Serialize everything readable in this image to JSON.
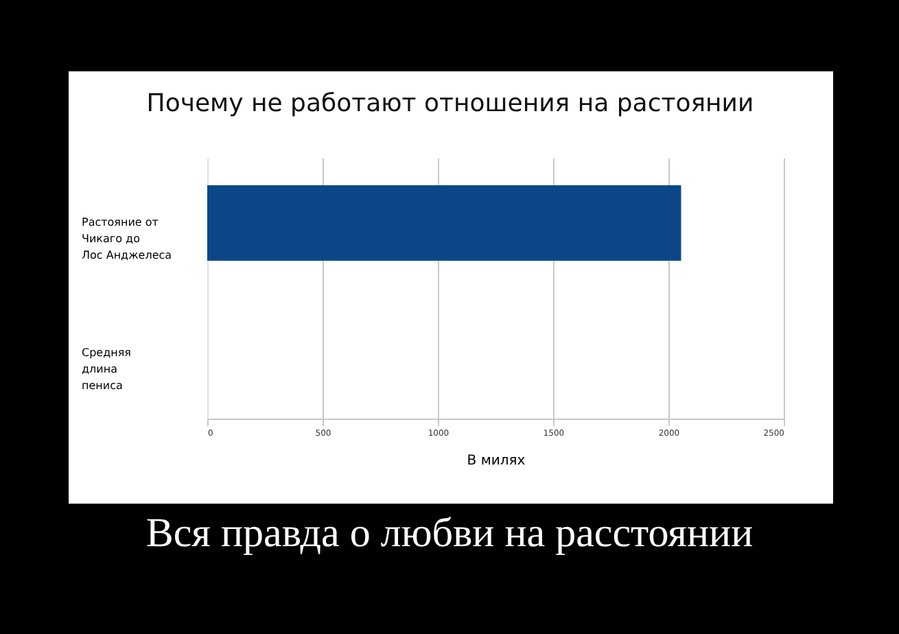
{
  "chart_data": {
    "type": "bar",
    "orientation": "horizontal",
    "title": "Почему не работают отношения на растоянии",
    "categories": [
      "Растояние от Чикаго до Лос Анджелеса",
      "Средняя длина пениса"
    ],
    "values": [
      2055,
      0
    ],
    "color": "#0b4787",
    "xlabel": "В милях",
    "xlim": [
      0,
      2500
    ],
    "xticks": [
      0,
      500,
      1000,
      1500,
      2000,
      2500
    ],
    "grid": "x",
    "annotations": [
      "Вся правда о любви на расстоянии"
    ]
  }
}
